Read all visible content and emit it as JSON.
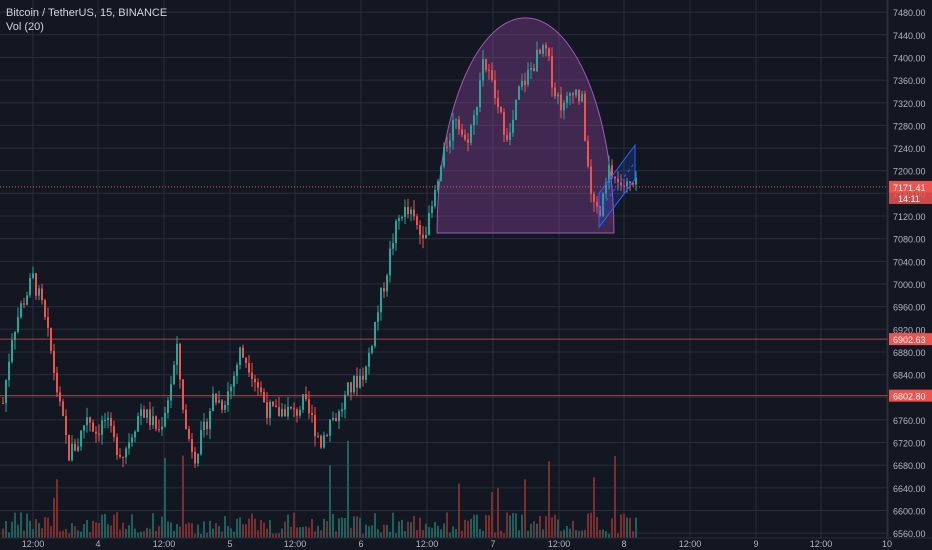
{
  "legend": {
    "symbol_line": "Bitcoin / TetherUS, 15, BINANCE",
    "volume_line": "Vol (20)"
  },
  "colors": {
    "background": "#131722",
    "grid": "#2a2e39",
    "text": "#b2b5be",
    "up": "#26a69a",
    "down": "#ef5350",
    "vol_up": "#1f5f5c",
    "vol_down": "#7a2e2e",
    "cup_fill": "#7b3f8c",
    "cup_stroke": "#9c5bb5",
    "channel": "#2962ff",
    "price_line": "#ef5350"
  },
  "price_axis": {
    "ticks": [
      7480,
      7440,
      7400,
      7360,
      7320,
      7280,
      7240,
      7200,
      7160,
      7120,
      7080,
      7040,
      7000,
      6960,
      6920,
      6880,
      6840,
      6800,
      6760,
      6720,
      6680,
      6640,
      6600,
      6560
    ],
    "tick_labels": [
      "7480.00",
      "7440.00",
      "7400.00",
      "7360.00",
      "7320.00",
      "7280.00",
      "7240.00",
      "7200.00",
      "7160.00",
      "7120.00",
      "7080.00",
      "7040.00",
      "7000.00",
      "6960.00",
      "6920.00",
      "6880.00",
      "6840.00",
      "6800.00",
      "6760.00",
      "6720.00",
      "6680.00",
      "6640.00",
      "6600.00",
      "6560.00"
    ]
  },
  "time_axis": {
    "labels": [
      "12:00",
      "4",
      "12:00",
      "5",
      "12:00",
      "6",
      "12:00",
      "7",
      "12:00",
      "8",
      "12:00",
      "9",
      "12:00",
      "10"
    ]
  },
  "price_badges": [
    {
      "price": 7171.41,
      "label": "7171.41",
      "sub": "14:11",
      "color": "#ef5350"
    },
    {
      "price": 6902.63,
      "label": "6902.63",
      "color": "#ef5350"
    },
    {
      "price": 6802.8,
      "label": "6802.80",
      "color": "#ef5350"
    }
  ],
  "chart_data": {
    "type": "candlestick",
    "symbol": "Bitcoin / TetherUS",
    "interval": "15",
    "exchange": "BINANCE",
    "indicators": [
      "Vol (20)"
    ],
    "ylim": [
      6555,
      7505
    ],
    "y_scale": "linear",
    "grid": true,
    "x_labels": [
      "12:00",
      "4",
      "12:00",
      "5",
      "12:00",
      "6",
      "12:00",
      "7",
      "12:00",
      "8",
      "12:00",
      "9",
      "12:00",
      "10"
    ],
    "close_path": [
      [
        0,
        6790
      ],
      [
        3,
        6910
      ],
      [
        6,
        6960
      ],
      [
        10,
        7010
      ],
      [
        13,
        6960
      ],
      [
        16,
        6880
      ],
      [
        19,
        6780
      ],
      [
        22,
        6700
      ],
      [
        25,
        6720
      ],
      [
        28,
        6770
      ],
      [
        31,
        6740
      ],
      [
        34,
        6760
      ],
      [
        37,
        6720
      ],
      [
        40,
        6700
      ],
      [
        43,
        6740
      ],
      [
        46,
        6780
      ],
      [
        49,
        6760
      ],
      [
        52,
        6740
      ],
      [
        55,
        6800
      ],
      [
        58,
        6880
      ],
      [
        61,
        6740
      ],
      [
        64,
        6700
      ],
      [
        67,
        6740
      ],
      [
        70,
        6800
      ],
      [
        73,
        6790
      ],
      [
        76,
        6820
      ],
      [
        79,
        6880
      ],
      [
        82,
        6860
      ],
      [
        85,
        6820
      ],
      [
        88,
        6780
      ],
      [
        91,
        6770
      ],
      [
        94,
        6780
      ],
      [
        97,
        6770
      ],
      [
        100,
        6790
      ],
      [
        103,
        6760
      ],
      [
        106,
        6720
      ],
      [
        109,
        6760
      ],
      [
        112,
        6770
      ],
      [
        115,
        6810
      ],
      [
        118,
        6830
      ],
      [
        121,
        6850
      ],
      [
        124,
        6930
      ],
      [
        127,
        7000
      ],
      [
        130,
        7080
      ],
      [
        133,
        7130
      ],
      [
        136,
        7120
      ],
      [
        139,
        7090
      ],
      [
        142,
        7110
      ],
      [
        145,
        7180
      ],
      [
        148,
        7250
      ],
      [
        151,
        7300
      ],
      [
        154,
        7250
      ],
      [
        157,
        7290
      ],
      [
        160,
        7400
      ],
      [
        163,
        7350
      ],
      [
        166,
        7290
      ],
      [
        169,
        7260
      ],
      [
        172,
        7340
      ],
      [
        175,
        7370
      ],
      [
        178,
        7400
      ],
      [
        181,
        7410
      ],
      [
        184,
        7340
      ],
      [
        187,
        7310
      ],
      [
        190,
        7350
      ],
      [
        193,
        7320
      ],
      [
        196,
        7150
      ],
      [
        199,
        7120
      ],
      [
        202,
        7200
      ],
      [
        205,
        7180
      ],
      [
        208,
        7171
      ]
    ],
    "cup_pattern": {
      "left": [
        145,
        7090
      ],
      "top": [
        166,
        7470
      ],
      "right": [
        204,
        7090
      ]
    },
    "channel": {
      "lower": [
        [
          199,
          7100
        ],
        [
          211,
          7185
        ]
      ],
      "upper": [
        [
          199,
          7160
        ],
        [
          211,
          7245
        ]
      ]
    },
    "last_price": 7171.41,
    "horizontal_levels": [
      6902.63,
      6802.8
    ]
  }
}
